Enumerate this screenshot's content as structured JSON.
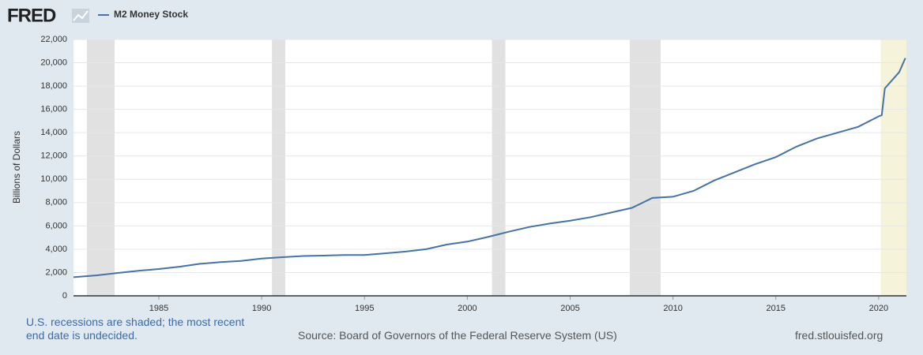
{
  "chart_data": {
    "type": "line",
    "logo": "FRED",
    "ylabel": "Billions of Dollars",
    "note": "U.S. recessions are shaded; the most recent end date is undecided.",
    "source": "Source: Board of Governors of the Federal Reserve System (US)",
    "site": "fred.stlouisfed.org",
    "x": [
      1980.85,
      1982,
      1983,
      1984,
      1985,
      1986,
      1987,
      1988,
      1989,
      1990,
      1991,
      1992,
      1993,
      1994,
      1995,
      1996,
      1997,
      1998,
      1999,
      2000,
      2001,
      2002,
      2003,
      2004,
      2005,
      2006,
      2007,
      2008,
      2009,
      2010,
      2011,
      2012,
      2013,
      2014,
      2015,
      2016,
      2017,
      2018,
      2019,
      2020,
      2020.15,
      2020.3,
      2020.6,
      2021,
      2021.2,
      2021.3
    ],
    "series": [
      {
        "name": "M2 Money Stock",
        "color": "#4572a7",
        "values": [
          1600,
          1760,
          1960,
          2150,
          2300,
          2500,
          2750,
          2900,
          3000,
          3200,
          3320,
          3420,
          3450,
          3500,
          3500,
          3650,
          3800,
          4000,
          4400,
          4650,
          5050,
          5500,
          5900,
          6200,
          6450,
          6750,
          7150,
          7550,
          8400,
          8500,
          9000,
          9900,
          10600,
          11300,
          11900,
          12800,
          13500,
          14000,
          14500,
          15400,
          15500,
          17800,
          18400,
          19200,
          20000,
          20400
        ]
      }
    ],
    "recessions": [
      {
        "start": 1981.5,
        "end": 1982.85
      },
      {
        "start": 1990.5,
        "end": 1991.15
      },
      {
        "start": 2001.2,
        "end": 2001.85
      },
      {
        "start": 2007.9,
        "end": 2009.4
      },
      {
        "start": 2020.1,
        "end": null
      }
    ],
    "recession_color": "#e1e1e1",
    "undecided_color": "#f6f3db",
    "xlim": [
      1980.85,
      2021.35
    ],
    "xticks": [
      1985,
      1990,
      1995,
      2000,
      2005,
      2010,
      2015,
      2020
    ],
    "ylim": [
      0,
      22000
    ],
    "yticks": [
      0,
      {
        "value": 2000,
        "label": "2,000"
      },
      {
        "value": 4000,
        "label": "4,000"
      },
      {
        "value": 6000,
        "label": "6,000"
      },
      {
        "value": 8000,
        "label": "8,000"
      },
      {
        "value": 10000,
        "label": "10,000"
      },
      {
        "value": 12000,
        "label": "12,000"
      },
      {
        "value": 14000,
        "label": "14,000"
      },
      {
        "value": 16000,
        "label": "16,000"
      },
      {
        "value": 18000,
        "label": "18,000"
      },
      {
        "value": 20000,
        "label": "20,000"
      },
      {
        "value": 22000,
        "label": "22,000"
      }
    ],
    "grid": true
  }
}
